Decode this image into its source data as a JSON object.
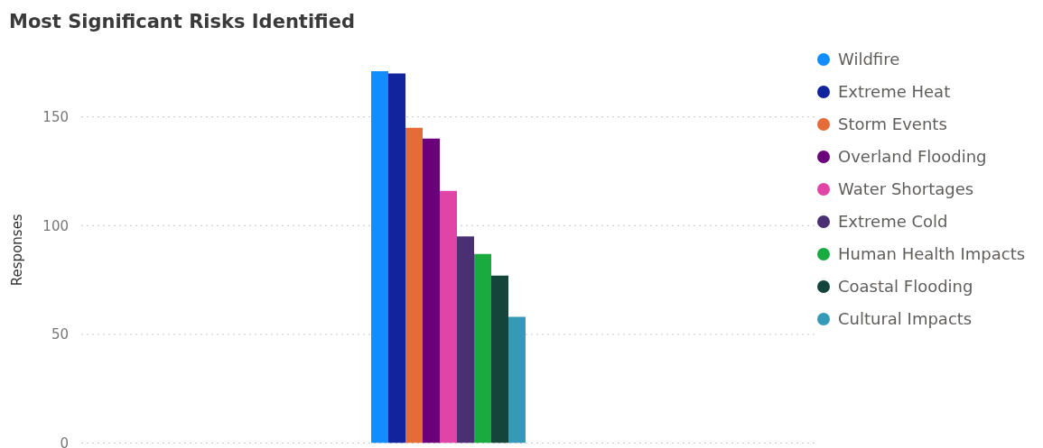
{
  "chart_data": {
    "type": "bar",
    "title": "Most Significant Risks Identified",
    "ylabel": "Responses",
    "categories": [
      null
    ],
    "series": [
      {
        "name": "Wildfire",
        "color": "#118dff",
        "values": [
          171
        ]
      },
      {
        "name": "Extreme Heat",
        "color": "#12239e",
        "values": [
          170
        ]
      },
      {
        "name": "Storm Events",
        "color": "#e66c37",
        "values": [
          145
        ]
      },
      {
        "name": "Overland Flooding",
        "color": "#6b007b",
        "values": [
          140
        ]
      },
      {
        "name": "Water Shortages",
        "color": "#e044a7",
        "values": [
          116
        ]
      },
      {
        "name": "Extreme Cold",
        "color": "#4a2f73",
        "values": [
          95
        ]
      },
      {
        "name": "Human Health Impacts",
        "color": "#1aab40",
        "values": [
          87
        ]
      },
      {
        "name": "Coastal Flooding",
        "color": "#15443b",
        "values": [
          77
        ]
      },
      {
        "name": "Cultural Impacts",
        "color": "#3599b8",
        "values": [
          58
        ]
      }
    ],
    "ylim": [
      0,
      171
    ],
    "yticks": [
      0,
      50,
      100,
      150
    ],
    "grid": "y",
    "legend": "top right"
  }
}
